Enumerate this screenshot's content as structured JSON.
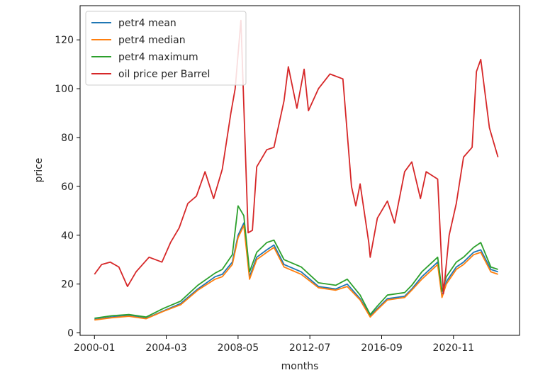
{
  "chart_data": {
    "type": "line",
    "xlabel": "months",
    "ylabel": "price",
    "x_tick_labels": [
      "2000-01",
      "2004-03",
      "2008-05",
      "2012-07",
      "2016-09",
      "2020-11"
    ],
    "y_ticks": [
      0,
      20,
      40,
      60,
      80,
      100,
      120
    ],
    "xlim": [
      "1999-03",
      "2024-09"
    ],
    "ylim": [
      -1,
      134
    ],
    "grid": false,
    "legend_position": "top-left",
    "series": [
      {
        "name": "petr4 mean",
        "color": "#1f77b4",
        "x": [
          "2000-01",
          "2001-01",
          "2002-01",
          "2003-01",
          "2004-01",
          "2005-01",
          "2006-01",
          "2007-01",
          "2007-06",
          "2008-01",
          "2008-05",
          "2008-09",
          "2009-01",
          "2009-06",
          "2010-01",
          "2010-06",
          "2011-01",
          "2012-01",
          "2013-01",
          "2014-01",
          "2014-09",
          "2015-06",
          "2016-01",
          "2016-06",
          "2017-01",
          "2018-01",
          "2018-06",
          "2019-01",
          "2019-12",
          "2020-03",
          "2020-06",
          "2021-01",
          "2021-06",
          "2022-01",
          "2022-06",
          "2023-01",
          "2023-06"
        ],
        "y": [
          5.5,
          6.5,
          7,
          6,
          9,
          12,
          18,
          23,
          24,
          29,
          40,
          45,
          23,
          31,
          34,
          36,
          28,
          25,
          19,
          18,
          20,
          14,
          7,
          10,
          14,
          15,
          18,
          23,
          29,
          15,
          21,
          27,
          29,
          33,
          34,
          26,
          25
        ]
      },
      {
        "name": "petr4 median",
        "color": "#ff7f0e",
        "x": [
          "2000-01",
          "2001-01",
          "2002-01",
          "2003-01",
          "2004-01",
          "2005-01",
          "2006-01",
          "2007-01",
          "2007-06",
          "2008-01",
          "2008-05",
          "2008-09",
          "2009-01",
          "2009-06",
          "2010-01",
          "2010-06",
          "2011-01",
          "2012-01",
          "2013-01",
          "2014-01",
          "2014-09",
          "2015-06",
          "2016-01",
          "2016-06",
          "2017-01",
          "2018-01",
          "2018-06",
          "2019-01",
          "2019-12",
          "2020-03",
          "2020-06",
          "2021-01",
          "2021-06",
          "2022-01",
          "2022-06",
          "2023-01",
          "2023-06"
        ],
        "y": [
          5.3,
          6.2,
          6.8,
          5.8,
          8.8,
          11.5,
          17.5,
          22,
          23,
          28,
          39,
          44,
          22,
          30,
          33,
          35,
          27,
          24,
          18.5,
          17.5,
          19,
          13.5,
          6.5,
          9.5,
          13.5,
          14.5,
          17.5,
          22,
          28,
          14.5,
          20,
          26,
          28,
          32,
          33,
          25,
          24
        ]
      },
      {
        "name": "petr4 maximum",
        "color": "#2ca02c",
        "x": [
          "2000-01",
          "2001-01",
          "2002-01",
          "2003-01",
          "2004-01",
          "2005-01",
          "2006-01",
          "2007-01",
          "2007-06",
          "2008-01",
          "2008-05",
          "2008-09",
          "2009-01",
          "2009-06",
          "2010-01",
          "2010-06",
          "2011-01",
          "2012-01",
          "2013-01",
          "2014-01",
          "2014-09",
          "2015-06",
          "2016-01",
          "2016-06",
          "2017-01",
          "2018-01",
          "2018-06",
          "2019-01",
          "2019-12",
          "2020-03",
          "2020-06",
          "2021-01",
          "2021-06",
          "2022-01",
          "2022-06",
          "2023-01",
          "2023-06"
        ],
        "y": [
          6,
          7,
          7.5,
          6.5,
          10,
          13,
          19.5,
          24.5,
          26,
          32,
          52,
          48,
          25,
          33,
          37,
          38,
          30,
          27,
          20.5,
          19.5,
          22,
          15.5,
          7.5,
          11,
          15.5,
          16.5,
          19.5,
          25,
          31,
          17,
          23,
          29,
          31,
          35,
          37,
          27,
          26
        ]
      },
      {
        "name": "oil price per Barrel",
        "color": "#d62728",
        "x": [
          "2000-01",
          "2000-06",
          "2000-12",
          "2001-06",
          "2001-12",
          "2002-06",
          "2003-03",
          "2003-12",
          "2004-06",
          "2004-12",
          "2005-06",
          "2005-12",
          "2006-06",
          "2006-12",
          "2007-06",
          "2007-12",
          "2008-03",
          "2008-07",
          "2008-12",
          "2009-03",
          "2009-06",
          "2010-01",
          "2010-06",
          "2011-01",
          "2011-04",
          "2011-10",
          "2012-03",
          "2012-06",
          "2013-01",
          "2013-09",
          "2014-06",
          "2014-12",
          "2015-03",
          "2015-06",
          "2015-12",
          "2016-01",
          "2016-06",
          "2017-01",
          "2017-06",
          "2018-01",
          "2018-06",
          "2018-12",
          "2019-04",
          "2019-12",
          "2020-03",
          "2020-04",
          "2020-08",
          "2021-01",
          "2021-06",
          "2021-12",
          "2022-03",
          "2022-06",
          "2022-12",
          "2023-03",
          "2023-06"
        ],
        "y": [
          24,
          28,
          29,
          27,
          19,
          25,
          31,
          29,
          37,
          43,
          53,
          56,
          66,
          55,
          67,
          90,
          100,
          128,
          41,
          42,
          68,
          75,
          76,
          95,
          109,
          92,
          108,
          91,
          100,
          106,
          104,
          60,
          52,
          61,
          37,
          31,
          47,
          54,
          45,
          66,
          70,
          55,
          66,
          63,
          26,
          16,
          40,
          53,
          72,
          76,
          107,
          112,
          84,
          78,
          72
        ]
      }
    ]
  }
}
